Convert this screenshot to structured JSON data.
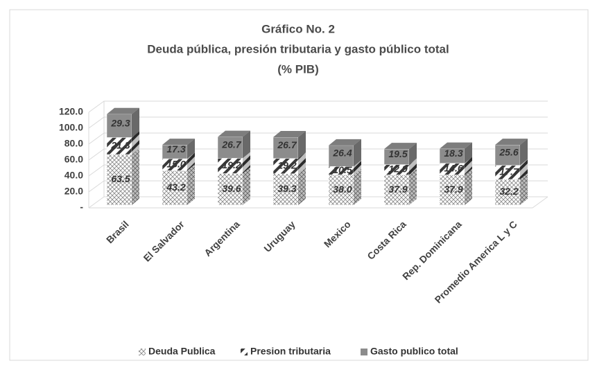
{
  "chart_data": {
    "type": "bar3d_stacked",
    "title": "Gráfico No. 2",
    "subtitle": "Deuda pública, presión tributaria y gasto público total",
    "unit_label": "(% PIB)",
    "categories": [
      "Brasil",
      "El Salvador",
      "Argentina",
      "Uruguay",
      "Mexico",
      "Costa Rica",
      "Rep. Dominicana",
      "Promedio America L y C"
    ],
    "series": [
      {
        "name": "Deuda Publica",
        "color": "#8a8a8a",
        "pattern": "crosshatch",
        "values": [
          63.5,
          43.2,
          39.6,
          39.3,
          38.0,
          37.9,
          37.9,
          32.2
        ],
        "value_labels": [
          "63.5",
          "43.2",
          "39.6",
          "39.3",
          "38.0",
          "37.9",
          "37.9",
          "32.2"
        ]
      },
      {
        "name": "Presion tributaria",
        "color": "#3a3a3a",
        "pattern": "diagonal",
        "values": [
          21.3,
          15.0,
          19.2,
          19.2,
          10.5,
          12.9,
          14.6,
          17.7
        ],
        "value_labels": [
          "21.3",
          "15.0",
          "19.2",
          "19.2",
          "10.5",
          "12.9",
          "14.6",
          "17.7"
        ]
      },
      {
        "name": "Gasto publico total",
        "color": "#8c8c8c",
        "pattern": "solid",
        "values": [
          29.3,
          17.3,
          26.7,
          26.7,
          26.4,
          19.5,
          18.3,
          25.6
        ],
        "value_labels": [
          "29.3",
          "17.3",
          "26.7",
          "26.7",
          "26.4",
          "19.5",
          "18.3",
          "25.6"
        ]
      }
    ],
    "ylim": [
      0,
      120
    ],
    "yticks": [
      {
        "value": 0,
        "label": "-"
      },
      {
        "value": 20,
        "label": "20.0"
      },
      {
        "value": 40,
        "label": "40.0"
      },
      {
        "value": 60,
        "label": "60.0"
      },
      {
        "value": 80,
        "label": "80.0"
      },
      {
        "value": 100,
        "label": "100.0"
      },
      {
        "value": 120,
        "label": "120.0"
      }
    ],
    "grid": true,
    "legend": "bottom"
  }
}
